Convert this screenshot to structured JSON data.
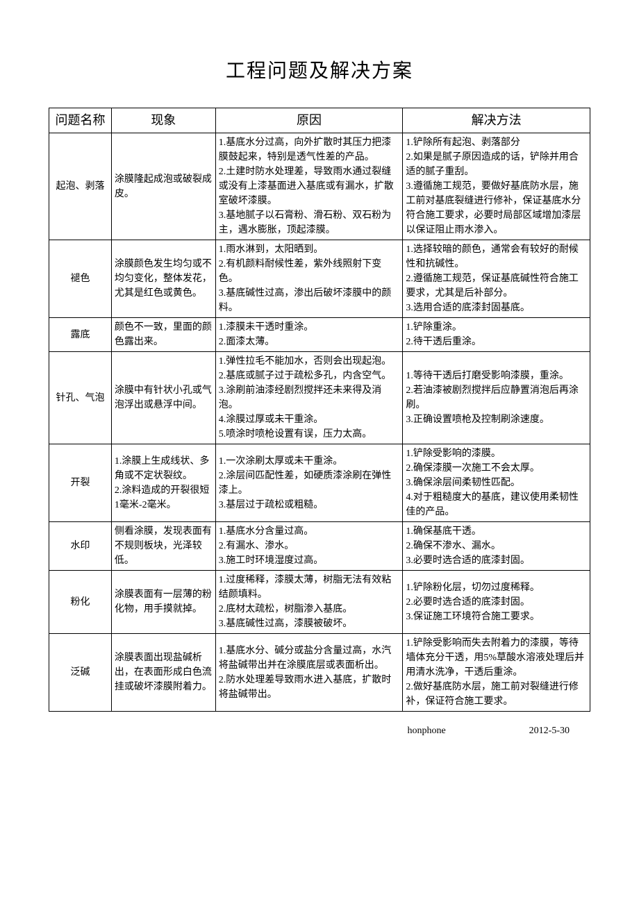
{
  "title": "工程问题及解决方案",
  "headers": {
    "name": "问题名称",
    "phenom": "现象",
    "cause": "原因",
    "solution": "解决方法"
  },
  "rows": [
    {
      "name": "起泡、剥落",
      "phenom": "涂膜隆起成泡或破裂成皮。",
      "cause": "1.基底水分过高，向外扩散时其压力把漆膜鼓起来，特别是透气性差的产品。\n2.土建时防水处理差，导致雨水通过裂缝或没有上漆基面进入基底或有漏水，扩散室破坏漆膜。\n3.基地腻子以石膏粉、滑石粉、双石粉为主，遇水膨胀，顶起漆膜。",
      "solution": "1.铲除所有起泡、剥落部分\n2.如果是腻子原因造成的话，铲除并用合适的腻子重刮。\n3.遵循施工规范，要做好基底防水层，施工前对基底裂缝进行修补，保证基底水分符合施工要求，必要时局部区域增加漆层以保证阻止雨水渗入。"
    },
    {
      "name": "褪色",
      "phenom": "涂膜颜色发生均匀或不均匀变化，整体发花，尤其是红色或黄色。",
      "cause": "1.雨水淋到，太阳晒到。\n2.有机颜料耐候性差，紫外线照射下变色。\n3.基底碱性过高，渗出后破坏漆膜中的颜料。",
      "solution": "1.选择较暗的颜色，通常会有较好的耐候性和抗碱性。\n2.遵循施工规范，保证基底碱性符合施工要求，尤其是后补部分。\n3.选用合适的底漆封固基底。"
    },
    {
      "name": "露底",
      "phenom": "颜色不一致，里面的颜色露出来。",
      "cause": "1.漆膜未干透时重涂。\n2.面漆太薄。",
      "solution": "1.铲除重涂。\n2.待干透后重涂。"
    },
    {
      "name": "针孔、气泡",
      "phenom": "涂膜中有针状小孔或气泡浮出或悬浮中间。",
      "cause": "1.弹性拉毛不能加水，否则会出现起泡。\n2.基底或腻子过于疏松多孔，内含空气。\n3.涂刷前油漆经剧烈搅拌还未来得及消泡。\n4.涂膜过厚或未干重涂。\n5.喷涂时喷枪设置有误，压力太高。",
      "solution": "1.等待干透后打磨受影响漆膜，重涂。\n2.若油漆被剧烈搅拌后应静置消泡后再涂刷。\n3.正确设置喷枪及控制刷涂速度。"
    },
    {
      "name": "开裂",
      "phenom": "1.涂膜上生成线状、多角或不定状裂纹。\n2.涂料造成的开裂很短1毫米-2毫米。",
      "cause": "1.一次涂刷太厚或未干重涂。\n2.涂层间匹配性差，如硬质漆涂刷在弹性漆上。\n3.基层过于疏松或粗糙。",
      "solution": "1.铲除受影响的漆膜。\n2.确保漆膜一次施工不会太厚。\n3.确保涂层间柔韧性匹配。\n4.对于粗糙度大的基底，建议使用柔韧性佳的产品。"
    },
    {
      "name": "水印",
      "phenom": "侧看涂膜，发现表面有不规则板块，光泽较低。",
      "cause": "1.基底水分含量过高。\n2.有漏水、渗水。\n3.施工时环境湿度过高。",
      "solution": "1.确保基底干透。\n2.确保不渗水、漏水。\n3.必要时选合适的底漆封固。"
    },
    {
      "name": "粉化",
      "phenom": "涂膜表面有一层薄的粉化物，用手摸就掉。",
      "cause": "1.过度稀释，漆膜太薄，树脂无法有效粘结颜填料。\n2.底材太疏松，树脂渗入基底。\n3.基底碱性过高，漆膜被破坏。",
      "solution": "1.铲除粉化层，切勿过度稀释。\n2.必要时选合适的底漆封固。\n3.保证施工环境符合施工要求。"
    },
    {
      "name": "泛碱",
      "phenom": "涂膜表面出现盐碱析出，在表面形成白色流挂或破坏漆膜附着力。",
      "cause": "1.基底水分、碱分或盐分含量过高，水汽将盐碱带出并在涂膜底层或表面析出。\n2.防水处理差导致雨水进入基底，扩散时将盐碱带出。",
      "solution": "1.铲除受影响而失去附着力的漆膜，等待墙体充分干透，用5%草酸水溶液处理后并用清水洗净，干透后重涂。\n2.做好基底防水层，施工前对裂缝进行修补，保证符合施工要求。"
    }
  ],
  "footer": {
    "author": "honphone",
    "date": "2012-5-30"
  },
  "styles": {
    "font_family": "SimSun",
    "title_fontsize": 28,
    "header_fontsize": 18,
    "cell_fontsize": 14,
    "border_color": "#000000",
    "background_color": "#ffffff",
    "col_widths": {
      "name": 90,
      "phenom": 150,
      "cause": 270,
      "solution": 270
    }
  }
}
